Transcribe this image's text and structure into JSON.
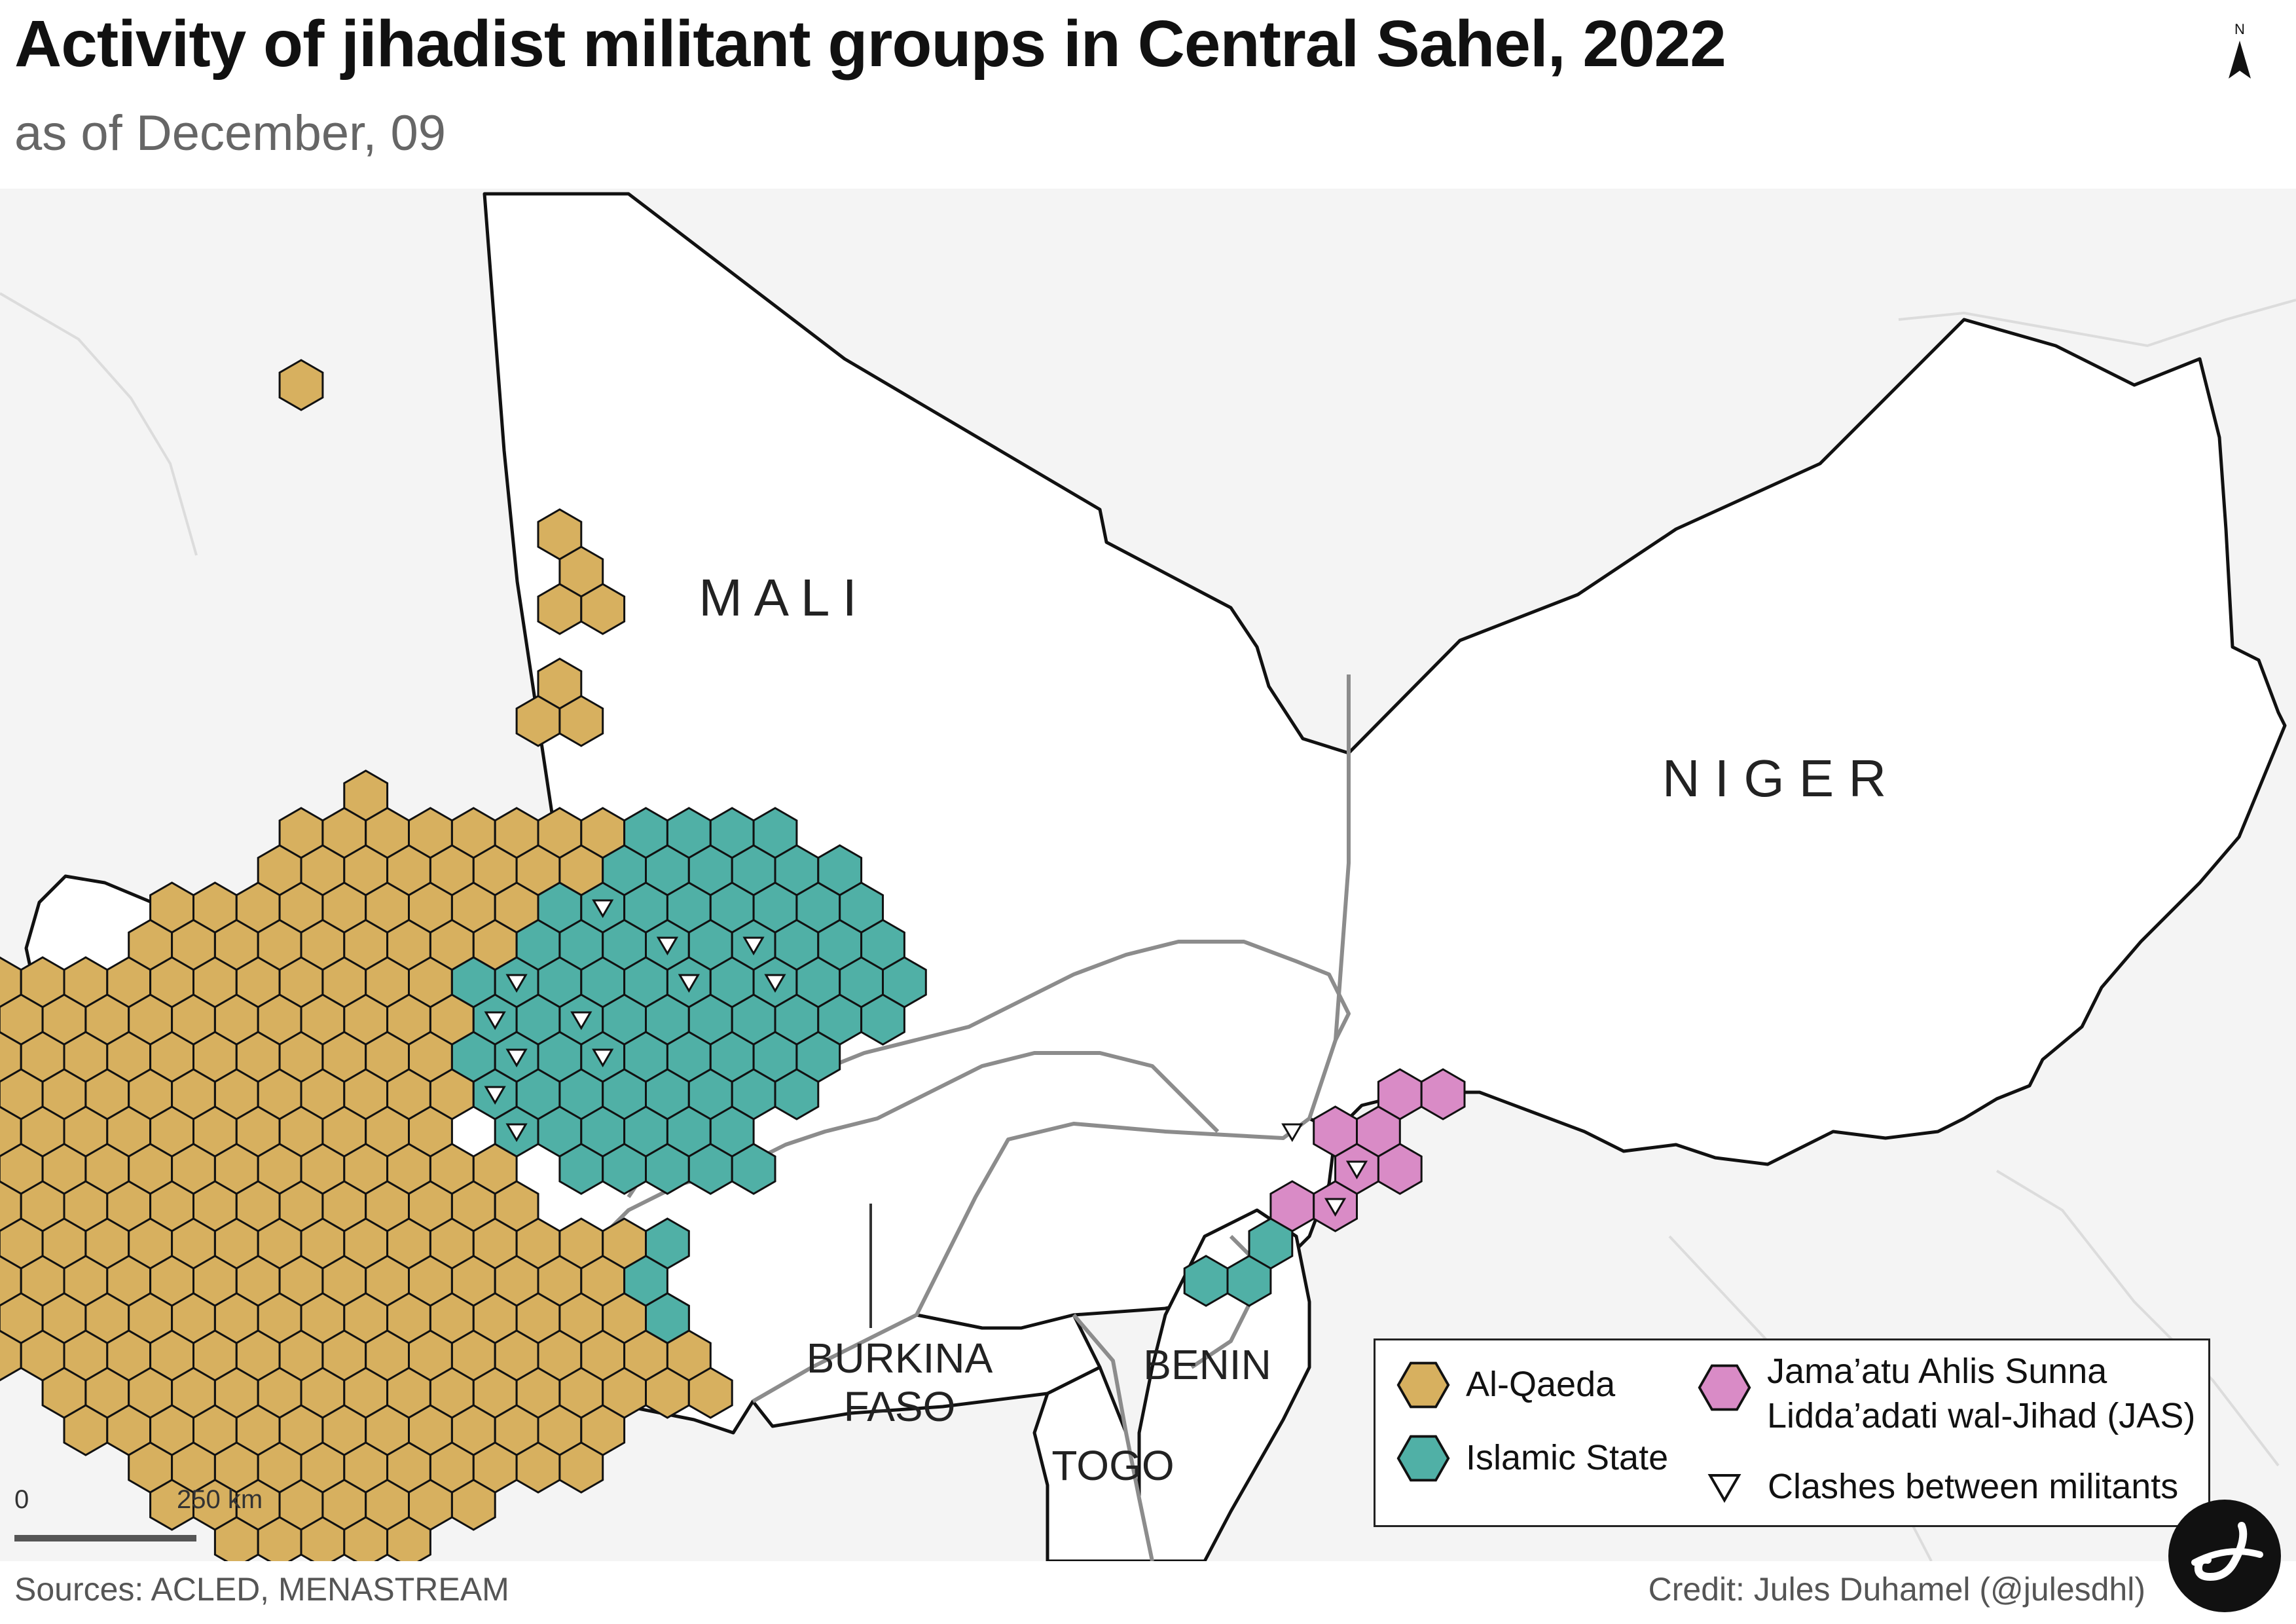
{
  "title": "Activity of jihadist militant groups in Central Sahel, 2022",
  "subtitle": "as of December, 09",
  "north_arrow": {
    "letter": "N",
    "icon": "north-arrow-icon"
  },
  "countries": {
    "mali": "M A L I",
    "niger": "N I G E R",
    "burkina_line1": "BURKINA",
    "burkina_line2": "FASO",
    "benin": "BENIN",
    "togo": "TOGO"
  },
  "legend": {
    "alqaeda": "Al-Qaeda",
    "islamic_state": "Islamic State",
    "jas_line1": "Jama’atu Ahlis Sunna",
    "jas_line2": "Lidda’adati wal-Jihad (JAS)",
    "clashes": "Clashes between militants"
  },
  "scale": {
    "zero": "0",
    "label": "250 km"
  },
  "sources": "Sources: ACLED, MENASTREAM",
  "credit": "Credit: Jules Duhamel (@julesdhl)",
  "colors": {
    "alqaeda": "#d7b05f",
    "islamic_state": "#50b0a6",
    "jas": "#d98bc6",
    "land": "#ffffff",
    "background": "#f4f4f4",
    "border": "#111111",
    "internal_border": "#8c8c8c"
  }
}
